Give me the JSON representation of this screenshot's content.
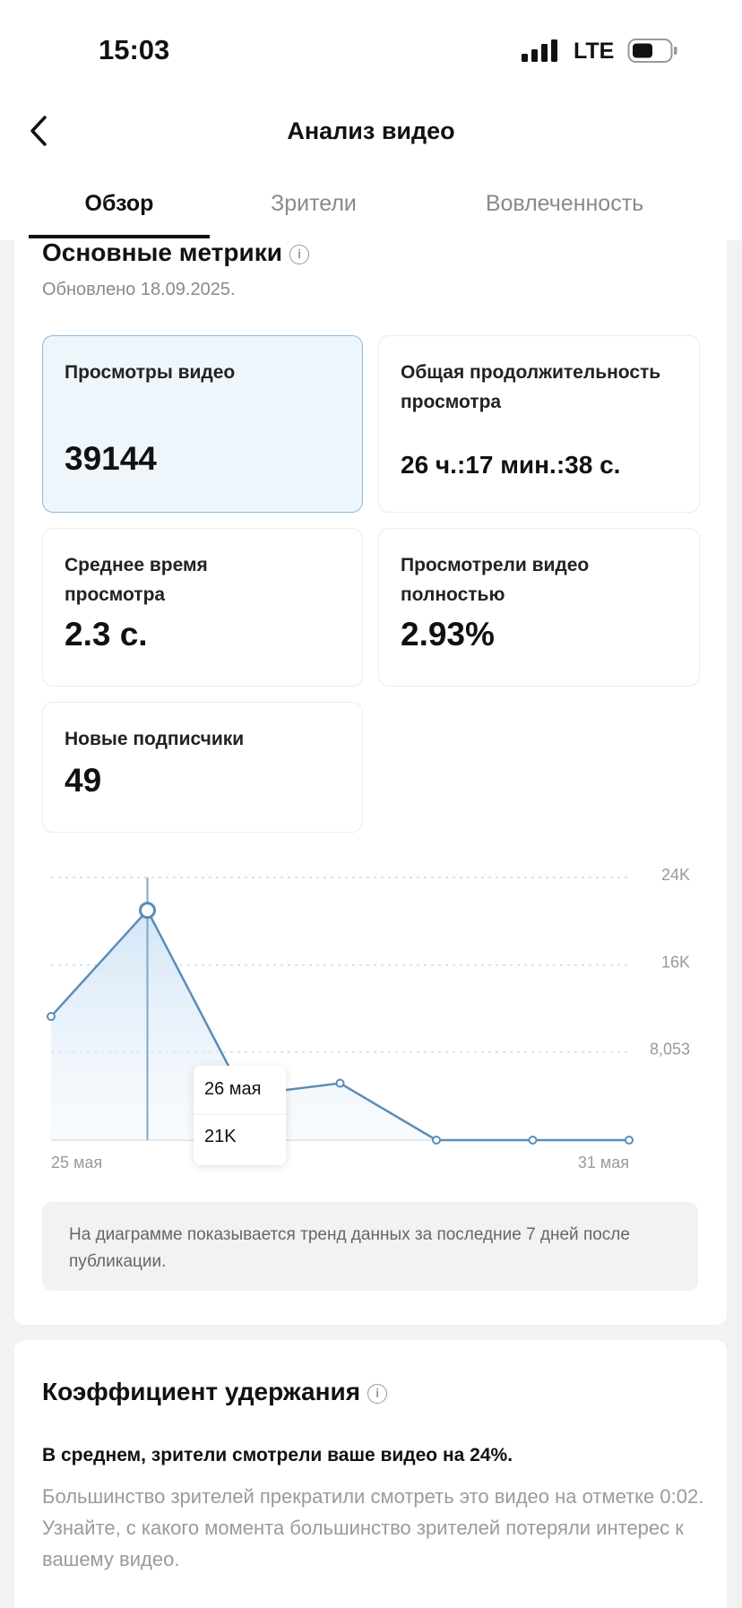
{
  "status_bar": {
    "time": "15:03",
    "network": "LTE"
  },
  "header": {
    "title": "Анализ видео"
  },
  "tabs": [
    "Обзор",
    "Зрители",
    "Вовлеченность"
  ],
  "metrics": {
    "title": "Основные метрики",
    "updated": "Обновлено 18.09.2025.",
    "cards": [
      {
        "label": "Просмотры видео",
        "value": "39144"
      },
      {
        "label": "Общая продолжительность просмотра",
        "value": "26 ч.:17 мин.:38 с."
      },
      {
        "label": "Среднее время просмотра",
        "value": "2.3 с."
      },
      {
        "label": "Просмотрели видео полностью",
        "value": "2.93%"
      },
      {
        "label": "Новые подписчики",
        "value": "49"
      }
    ]
  },
  "chart": {
    "type": "line",
    "categories": [
      "25 мая",
      null,
      null,
      null,
      null,
      null,
      "31 мая"
    ],
    "values": [
      11300,
      21000,
      4100,
      5200,
      0,
      0,
      0
    ],
    "color": "#5b8db8",
    "ylim": [
      0,
      24000
    ],
    "yticks": [
      {
        "value": 8053,
        "label": "8,053"
      },
      {
        "value": 16000,
        "label": "16K"
      },
      {
        "value": 24000,
        "label": "24K"
      }
    ],
    "grid": true,
    "tooltip": {
      "title": "26 мая",
      "value": "21K"
    }
  },
  "note": "На диаграмме показывается тренд данных за последние 7 дней после публикации.",
  "retention": {
    "title": "Коэффициент удержания",
    "summary": "В среднем, зрители смотрели ваше видео на 24%.",
    "text": "Большинство зрителей прекратили смотреть это видео на отметке 0:02. Узнайте, с какого момента большинство зрителей потеряли интерес к вашему видео."
  }
}
